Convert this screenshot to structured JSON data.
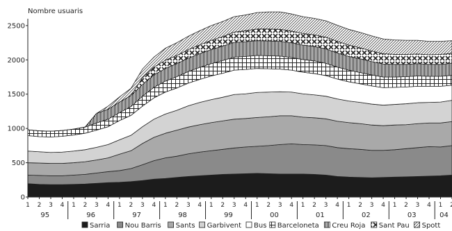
{
  "chart_data": {
    "type": "area",
    "ylabel": "Nombre usuaris",
    "ylim": [
      0,
      2600
    ],
    "y_ticks": [
      0,
      500,
      1000,
      1500,
      2000,
      2500
    ],
    "grid": false,
    "stacked": true,
    "legend_position": "bottom",
    "quarter_labels": [
      "1",
      "2",
      "3",
      "4",
      "1",
      "2",
      "3",
      "4",
      "1",
      "2",
      "3",
      "4",
      "1",
      "2",
      "3",
      "4",
      "1",
      "2",
      "3",
      "4",
      "1",
      "2",
      "3",
      "4",
      "1",
      "2",
      "3",
      "4",
      "1",
      "2",
      "3",
      "4",
      "1",
      "2",
      "3",
      "4",
      "1",
      "2"
    ],
    "year_labels": [
      "95",
      "96",
      "97",
      "98",
      "99",
      "00",
      "01",
      "02",
      "03",
      "04"
    ],
    "x": [
      "95-Q1",
      "95-Q2",
      "95-Q3",
      "95-Q4",
      "96-Q1",
      "96-Q2",
      "96-Q3",
      "96-Q4",
      "97-Q1",
      "97-Q2",
      "97-Q3",
      "97-Q4",
      "98-Q1",
      "98-Q2",
      "98-Q3",
      "98-Q4",
      "99-Q1",
      "99-Q2",
      "99-Q3",
      "99-Q4",
      "00-Q1",
      "00-Q2",
      "00-Q3",
      "00-Q4",
      "01-Q1",
      "01-Q2",
      "01-Q3",
      "01-Q4",
      "02-Q1",
      "02-Q2",
      "02-Q3",
      "02-Q4",
      "03-Q1",
      "03-Q2",
      "03-Q3",
      "03-Q4",
      "04-Q1",
      "04-Q2"
    ],
    "series": [
      {
        "name": "Sarria",
        "values": [
          195,
          185,
          180,
          180,
          185,
          190,
          200,
          210,
          215,
          225,
          240,
          260,
          270,
          285,
          300,
          310,
          320,
          330,
          335,
          340,
          345,
          340,
          335,
          335,
          335,
          330,
          320,
          300,
          290,
          285,
          280,
          285,
          290,
          295,
          300,
          305,
          310,
          320
        ]
      },
      {
        "name": "Nou Barris",
        "values": [
          125,
          130,
          130,
          130,
          135,
          140,
          150,
          160,
          170,
          190,
          230,
          270,
          300,
          310,
          330,
          345,
          355,
          365,
          380,
          390,
          395,
          410,
          430,
          440,
          430,
          430,
          430,
          420,
          415,
          410,
          400,
          395,
          400,
          410,
          420,
          430,
          420,
          430
        ]
      },
      {
        "name": "Sants",
        "values": [
          180,
          180,
          180,
          180,
          180,
          185,
          190,
          200,
          240,
          260,
          310,
          340,
          360,
          380,
          390,
          400,
          410,
          415,
          420,
          415,
          420,
          420,
          420,
          410,
          400,
          395,
          390,
          385,
          380,
          375,
          370,
          360,
          360,
          350,
          350,
          345,
          350,
          350
        ]
      },
      {
        "name": "Garbivent",
        "values": [
          170,
          165,
          160,
          165,
          170,
          175,
          185,
          195,
          210,
          225,
          245,
          265,
          280,
          290,
          310,
          325,
          335,
          345,
          360,
          360,
          365,
          360,
          350,
          345,
          340,
          335,
          330,
          325,
          315,
          310,
          305,
          300,
          300,
          305,
          305,
          300,
          305,
          310
        ]
      },
      {
        "name": "Bus",
        "values": [
          225,
          220,
          225,
          230,
          235,
          240,
          250,
          260,
          280,
          290,
          300,
          310,
          320,
          325,
          330,
          335,
          345,
          350,
          355,
          355,
          350,
          340,
          330,
          320,
          315,
          310,
          300,
          290,
          280,
          270,
          265,
          255,
          250,
          245,
          240,
          235,
          230,
          220
        ]
      },
      {
        "name": "Barceloneta",
        "values": [
          85,
          85,
          85,
          85,
          85,
          90,
          105,
          110,
          115,
          130,
          145,
          155,
          160,
          165,
          170,
          175,
          180,
          185,
          190,
          190,
          190,
          190,
          190,
          185,
          185,
          185,
          180,
          175,
          170,
          165,
          160,
          155,
          150,
          150,
          150,
          145,
          145,
          145
        ]
      },
      {
        "name": "Creu Roja",
        "values": [
          0,
          0,
          0,
          0,
          0,
          0,
          140,
          145,
          155,
          160,
          170,
          180,
          185,
          190,
          195,
          200,
          205,
          210,
          215,
          215,
          215,
          215,
          215,
          215,
          210,
          210,
          210,
          205,
          200,
          200,
          195,
          190,
          185,
          180,
          180,
          175,
          175,
          175
        ]
      },
      {
        "name": "Sant Pau",
        "values": [
          0,
          0,
          0,
          0,
          0,
          0,
          0,
          0,
          0,
          0,
          100,
          115,
          120,
          120,
          125,
          130,
          135,
          140,
          150,
          160,
          170,
          175,
          175,
          170,
          170,
          170,
          170,
          170,
          165,
          160,
          155,
          150,
          145,
          145,
          140,
          140,
          145,
          145
        ]
      },
      {
        "name": "Spott",
        "values": [
          0,
          0,
          0,
          0,
          0,
          0,
          0,
          45,
          75,
          105,
          125,
          145,
          175,
          185,
          195,
          205,
          215,
          220,
          225,
          230,
          240,
          250,
          255,
          250,
          245,
          240,
          240,
          235,
          230,
          225,
          220,
          215,
          210,
          205,
          200,
          195,
          190,
          185
        ]
      }
    ],
    "legend": [
      "Sarria",
      "Nou Barris",
      "Sants",
      "Garbivent",
      "Bus",
      "Barceloneta",
      "Creu Roja",
      "Sant Pau",
      "Spott"
    ]
  }
}
